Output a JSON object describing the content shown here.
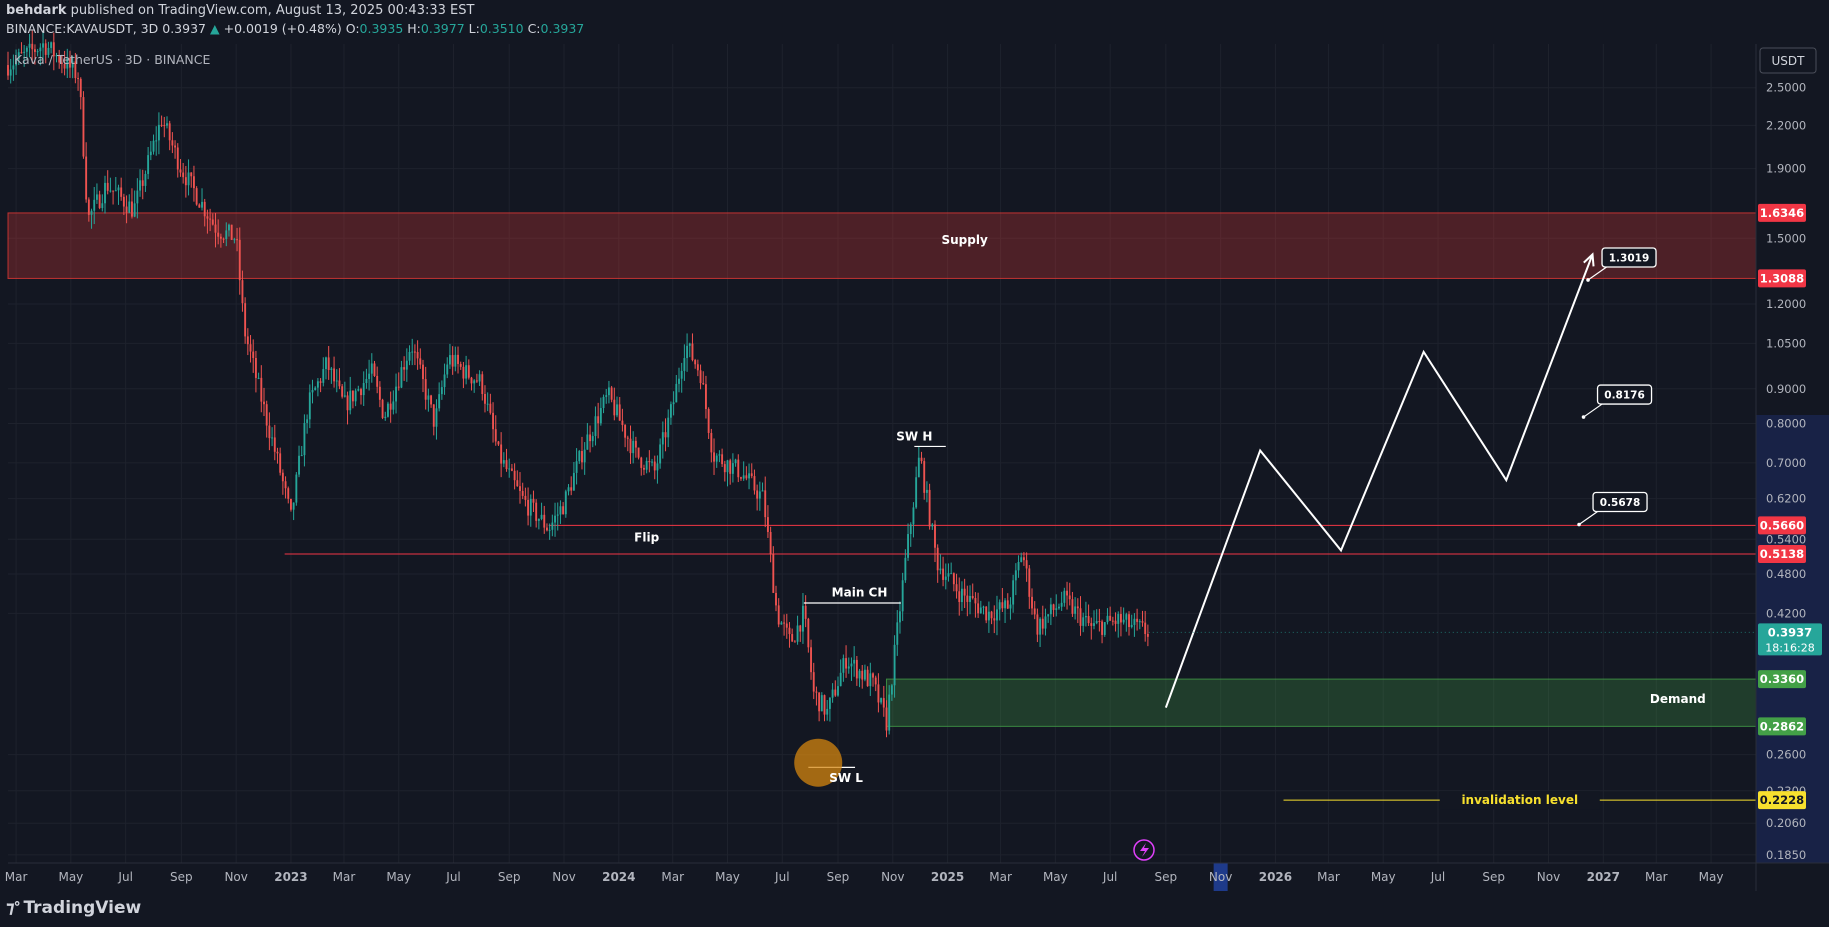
{
  "header": {
    "author": "behdark",
    "published": "published on TradingView.com, August 13, 2025 00:43:33 EST",
    "symbol": "BINANCE:KAVAUSDT, 3D",
    "last": "0.3937",
    "change_arrow": "▲",
    "change": "+0.0019 (+0.48%)",
    "o_label": "O:",
    "o": "0.3935",
    "h_label": "H:",
    "h": "0.3977",
    "l_label": "L:",
    "l": "0.3510",
    "c_label": "C:",
    "c": "0.3937"
  },
  "footer": {
    "logo": "TradingView"
  },
  "chart_data": {
    "type": "candlestick",
    "title": "Kava / TetherUS · 3D · BINANCE",
    "currency": "USDT",
    "y_scale": "log",
    "ylim": [
      0.18,
      2.9
    ],
    "xlim": [
      "2022-02-20",
      "2027-06-20"
    ],
    "price_ticks": [
      2.5,
      2.2,
      1.9,
      1.5,
      1.2,
      1.05,
      0.9,
      0.8,
      0.7,
      0.62,
      0.54,
      0.48,
      0.42,
      0.26,
      0.23,
      0.206,
      0.185
    ],
    "price_tick_labels": [
      "2.5000",
      "2.2000",
      "1.9000",
      "1.5000",
      "1.2000",
      "1.0500",
      "0.9000",
      "0.8000",
      "0.7000",
      "0.6200",
      "0.5400",
      "0.4800",
      "0.4200",
      "0.2600",
      "0.2300",
      "0.2060",
      "0.1850"
    ],
    "time_ticks": [
      {
        "label": "Mar",
        "date": "2022-03-01"
      },
      {
        "label": "May",
        "date": "2022-05-01"
      },
      {
        "label": "Jul",
        "date": "2022-07-01"
      },
      {
        "label": "Sep",
        "date": "2022-09-01"
      },
      {
        "label": "Nov",
        "date": "2022-11-01"
      },
      {
        "label": "2023",
        "date": "2023-01-01"
      },
      {
        "label": "Mar",
        "date": "2023-03-01"
      },
      {
        "label": "May",
        "date": "2023-05-01"
      },
      {
        "label": "Jul",
        "date": "2023-07-01"
      },
      {
        "label": "Sep",
        "date": "2023-09-01"
      },
      {
        "label": "Nov",
        "date": "2023-11-01"
      },
      {
        "label": "2024",
        "date": "2024-01-01"
      },
      {
        "label": "Mar",
        "date": "2024-03-01"
      },
      {
        "label": "May",
        "date": "2024-05-01"
      },
      {
        "label": "Jul",
        "date": "2024-07-01"
      },
      {
        "label": "Sep",
        "date": "2024-09-01"
      },
      {
        "label": "Nov",
        "date": "2024-11-01"
      },
      {
        "label": "2025",
        "date": "2025-01-01"
      },
      {
        "label": "Mar",
        "date": "2025-03-01"
      },
      {
        "label": "May",
        "date": "2025-05-01"
      },
      {
        "label": "Jul",
        "date": "2025-07-01"
      },
      {
        "label": "Sep",
        "date": "2025-09-01"
      },
      {
        "label": "Nov",
        "date": "2025-11-01"
      },
      {
        "label": "2026",
        "date": "2026-01-01"
      },
      {
        "label": "Mar",
        "date": "2026-03-01"
      },
      {
        "label": "May",
        "date": "2026-05-01"
      },
      {
        "label": "Jul",
        "date": "2026-07-01"
      },
      {
        "label": "Sep",
        "date": "2026-09-01"
      },
      {
        "label": "Nov",
        "date": "2026-11-01"
      },
      {
        "label": "2027",
        "date": "2027-01-01"
      },
      {
        "label": "Mar",
        "date": "2027-03-01"
      },
      {
        "label": "May",
        "date": "2027-05-01"
      }
    ],
    "highlighted_time_tick": "Nov",
    "price_path": [
      [
        "2022-02-20",
        2.7
      ],
      [
        "2022-04-01",
        2.9
      ],
      [
        "2022-05-10",
        2.6
      ],
      [
        "2022-05-20",
        1.6
      ],
      [
        "2022-06-10",
        1.8
      ],
      [
        "2022-07-10",
        1.65
      ],
      [
        "2022-08-10",
        2.25
      ],
      [
        "2022-09-01",
        1.9
      ],
      [
        "2022-09-20",
        1.72
      ],
      [
        "2022-10-10",
        1.55
      ],
      [
        "2022-11-01",
        1.5
      ],
      [
        "2022-11-10",
        1.1
      ],
      [
        "2022-12-01",
        0.85
      ],
      [
        "2022-12-20",
        0.68
      ],
      [
        "2023-01-01",
        0.58
      ],
      [
        "2023-01-20",
        0.85
      ],
      [
        "2023-02-10",
        0.98
      ],
      [
        "2023-03-01",
        0.85
      ],
      [
        "2023-04-01",
        0.95
      ],
      [
        "2023-04-15",
        0.82
      ],
      [
        "2023-05-15",
        1.05
      ],
      [
        "2023-06-10",
        0.8
      ],
      [
        "2023-06-25",
        1.0
      ],
      [
        "2023-07-15",
        0.95
      ],
      [
        "2023-08-01",
        0.92
      ],
      [
        "2023-08-20",
        0.72
      ],
      [
        "2023-09-15",
        0.62
      ],
      [
        "2023-10-15",
        0.56
      ],
      [
        "2023-11-01",
        0.61
      ],
      [
        "2023-11-25",
        0.75
      ],
      [
        "2023-12-20",
        0.88
      ],
      [
        "2024-01-20",
        0.72
      ],
      [
        "2024-02-10",
        0.68
      ],
      [
        "2024-03-01",
        0.85
      ],
      [
        "2024-03-15",
        1.05
      ],
      [
        "2024-04-01",
        0.95
      ],
      [
        "2024-04-15",
        0.72
      ],
      [
        "2024-05-15",
        0.68
      ],
      [
        "2024-06-10",
        0.62
      ],
      [
        "2024-06-25",
        0.42
      ],
      [
        "2024-07-10",
        0.38
      ],
      [
        "2024-07-25",
        0.42
      ],
      [
        "2024-08-05",
        0.32
      ],
      [
        "2024-08-20",
        0.3
      ],
      [
        "2024-09-10",
        0.36
      ],
      [
        "2024-10-10",
        0.33
      ],
      [
        "2024-10-25",
        0.29
      ],
      [
        "2024-11-15",
        0.5
      ],
      [
        "2024-12-01",
        0.72
      ],
      [
        "2024-12-20",
        0.5
      ],
      [
        "2025-01-15",
        0.45
      ],
      [
        "2025-02-15",
        0.42
      ],
      [
        "2025-03-10",
        0.43
      ],
      [
        "2025-03-25",
        0.52
      ],
      [
        "2025-04-10",
        0.4
      ],
      [
        "2025-05-10",
        0.44
      ],
      [
        "2025-06-10",
        0.4
      ],
      [
        "2025-07-10",
        0.41
      ],
      [
        "2025-08-13",
        0.3937
      ]
    ],
    "zones": [
      {
        "name": "Supply",
        "top": 1.6346,
        "bottom": 1.3088,
        "start": "2022-02-20",
        "top_label": "1.6346",
        "bottom_label": "1.3088",
        "color": "#e53935"
      },
      {
        "name": "Demand",
        "top": 0.336,
        "bottom": 0.2862,
        "start": "2024-10-25",
        "top_label": "0.3360",
        "bottom_label": "0.2862",
        "color": "#43a047"
      }
    ],
    "levels": [
      {
        "name": "flip-upper",
        "price": 0.566,
        "start": "2023-10-15",
        "label": "0.5660",
        "color": "#f23645"
      },
      {
        "name": "flip-lower",
        "price": 0.5138,
        "start": "2022-12-25",
        "label": "0.5138",
        "color": "#f23645"
      },
      {
        "name": "invalidation",
        "price": 0.2228,
        "start": "2026-01-10",
        "text": "invalidation level",
        "label": "0.2228",
        "color": "#f7e02e"
      }
    ],
    "last_price": {
      "value": 0.3937,
      "label": "0.3937",
      "countdown": "18:16:28"
    },
    "annotations": [
      {
        "text": "Supply",
        "x": "2025-01-20",
        "y": 1.47
      },
      {
        "text": "Flip",
        "x": "2024-02-01",
        "y": 0.536
      },
      {
        "text": "Main CH",
        "x": "2024-09-25",
        "y": 0.445
      },
      {
        "text": "SW H",
        "x": "2024-11-25",
        "y": 0.755
      },
      {
        "text": "SW L",
        "x": "2024-09-10",
        "y": 0.237
      },
      {
        "text": "Demand",
        "x": "2027-03-25",
        "y": 0.31
      }
    ],
    "targets": [
      {
        "label": "1.3019",
        "x": "2026-12-15",
        "y": 1.3019
      },
      {
        "label": "0.8176",
        "x": "2026-12-10",
        "y": 0.8176
      },
      {
        "label": "0.5678",
        "x": "2026-12-05",
        "y": 0.5678
      }
    ],
    "projection": [
      [
        "2025-09-01",
        0.305
      ],
      [
        "2025-12-15",
        0.73
      ],
      [
        "2026-03-15",
        0.52
      ],
      [
        "2026-06-15",
        1.02
      ],
      [
        "2026-09-15",
        0.66
      ],
      [
        "2026-12-20",
        1.42
      ]
    ]
  }
}
